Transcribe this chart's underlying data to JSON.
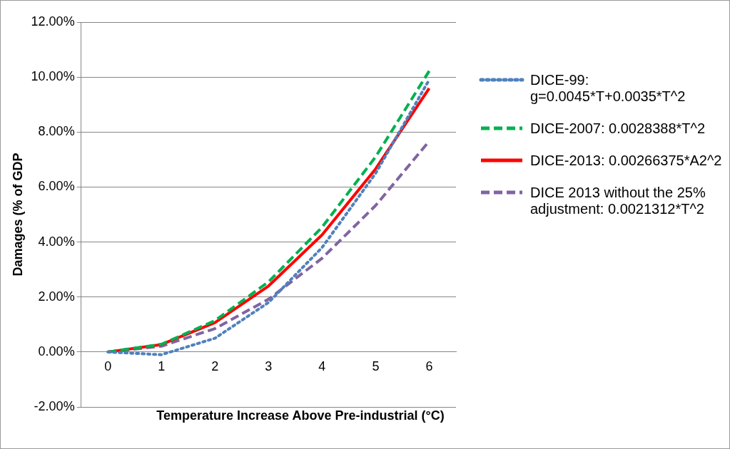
{
  "chart_data": {
    "type": "line",
    "xlabel": "Temperature Increase Above Pre-industrial (°C)",
    "ylabel": "Damages (% of GDP",
    "categories": [
      "0",
      "1",
      "2",
      "3",
      "4",
      "5",
      "6"
    ],
    "series": [
      {
        "name": "DICE-99: g=0.0045*T+0.0035*T^2",
        "color": "#4f81bd",
        "line_style": "dotted",
        "values": [
          0,
          -0.1,
          0.5,
          1.8,
          3.8,
          6.5,
          9.9
        ]
      },
      {
        "name": "DICE-2007: 0.0028388*T^2",
        "color": "#00b050",
        "line_style": "dashed",
        "values": [
          0,
          0.28,
          1.14,
          2.55,
          4.54,
          7.1,
          10.22
        ]
      },
      {
        "name": "DICE-2013: 0.00266375*A2^2",
        "color": "#ff0000",
        "line_style": "solid",
        "values": [
          0,
          0.27,
          1.07,
          2.4,
          4.26,
          6.66,
          9.59
        ]
      },
      {
        "name": "DICE 2013 without the 25% adjustment: 0.0021312*T^2",
        "color": "#8064a2",
        "line_style": "dashed",
        "values": [
          0,
          0.21,
          0.85,
          1.92,
          3.41,
          5.33,
          7.67
        ]
      }
    ],
    "ylim": [
      -2,
      12
    ],
    "yticks": [
      {
        "value": -2,
        "label": "-2.00%"
      },
      {
        "value": 0,
        "label": "0.00%"
      },
      {
        "value": 2,
        "label": "2.00%"
      },
      {
        "value": 4,
        "label": "4.00%"
      },
      {
        "value": 6,
        "label": "6.00%"
      },
      {
        "value": 8,
        "label": "8.00%"
      },
      {
        "value": 10,
        "label": "10.00%"
      },
      {
        "value": 12,
        "label": "12.00%"
      }
    ],
    "grid": "y",
    "legend": "right",
    "marker": "none"
  }
}
